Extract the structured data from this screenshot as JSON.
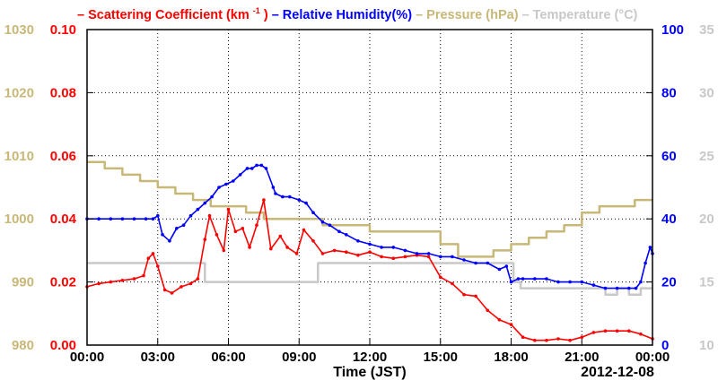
{
  "chart_data": {
    "type": "line",
    "legend": [
      {
        "id": "scat",
        "prefix": "– Scattering Coefficient (km",
        "sup": "-1",
        "suffix": ")",
        "color": "#ff0000"
      },
      {
        "id": "rh",
        "text": " – Relative Humidity(%)",
        "color": "#0000ff"
      },
      {
        "id": "pres",
        "text": " – Pressure (hPa)",
        "color": "#c8b878"
      },
      {
        "id": "temp",
        "text": " – Temperature (°C)",
        "color": "#c8c8c8"
      }
    ],
    "legend_placement": "top",
    "xlabel": "Time (JST)",
    "date_label": "2012-12-08",
    "x_ticks": [
      "00:00",
      "03:00",
      "06:00",
      "09:00",
      "12:00",
      "15:00",
      "18:00",
      "21:00",
      "00:00"
    ],
    "x_range_hours": [
      0,
      24
    ],
    "grid": true,
    "axes": {
      "pressure": {
        "side": "left-outer",
        "range": [
          980,
          1030
        ],
        "ticks": [
          "980",
          "990",
          "1000",
          "1010",
          "1020",
          "1030"
        ],
        "color": "#c8b878"
      },
      "scattering": {
        "side": "left-inner",
        "range": [
          0,
          0.1
        ],
        "ticks": [
          "0.00",
          "0.02",
          "0.04",
          "0.06",
          "0.08",
          "0.10"
        ],
        "color": "#ff0000"
      },
      "humidity": {
        "side": "right-inner",
        "range": [
          0,
          100
        ],
        "ticks": [
          "0",
          "20",
          "40",
          "60",
          "80",
          "100"
        ],
        "color": "#0000ff"
      },
      "temperature": {
        "side": "right-outer",
        "range": [
          10,
          35
        ],
        "ticks": [
          "10",
          "15",
          "20",
          "25",
          "30",
          "35"
        ],
        "color": "#c8c8c8"
      }
    },
    "series": [
      {
        "name": "Scattering Coefficient",
        "axis": "scattering",
        "color": "#ff0000",
        "marker": "circle",
        "x": [
          0,
          0.5,
          1.0,
          1.5,
          2.0,
          2.4,
          2.6,
          2.8,
          3.0,
          3.3,
          3.6,
          4.0,
          4.4,
          4.7,
          5.0,
          5.2,
          5.5,
          5.8,
          6.0,
          6.3,
          6.6,
          6.9,
          7.2,
          7.5,
          7.8,
          8.2,
          8.5,
          8.9,
          9.2,
          9.6,
          10.0,
          10.5,
          11.0,
          11.5,
          12.0,
          12.5,
          13.0,
          13.5,
          14.0,
          14.5,
          15.0,
          15.5,
          16.0,
          16.5,
          17.0,
          17.5,
          18.0,
          18.5,
          19.0,
          19.5,
          20.0,
          20.5,
          21.0,
          21.5,
          22.0,
          22.5,
          23.0,
          23.5,
          24.0
        ],
        "y": [
          0.0185,
          0.0195,
          0.02,
          0.0205,
          0.021,
          0.022,
          0.0275,
          0.029,
          0.025,
          0.0175,
          0.0165,
          0.0185,
          0.0195,
          0.021,
          0.0335,
          0.041,
          0.035,
          0.03,
          0.043,
          0.036,
          0.037,
          0.031,
          0.038,
          0.046,
          0.0305,
          0.0345,
          0.031,
          0.029,
          0.0365,
          0.033,
          0.029,
          0.03,
          0.0295,
          0.0285,
          0.0295,
          0.028,
          0.0275,
          0.028,
          0.0285,
          0.028,
          0.0215,
          0.0195,
          0.016,
          0.0155,
          0.011,
          0.008,
          0.0065,
          0.0025,
          0.0015,
          0.0015,
          0.002,
          0.0015,
          0.0025,
          0.004,
          0.0045,
          0.0045,
          0.0045,
          0.0035,
          0.002
        ]
      },
      {
        "name": "Relative Humidity",
        "axis": "humidity",
        "color": "#0000ff",
        "marker": "circle",
        "x": [
          0,
          0.5,
          1.0,
          1.5,
          2.0,
          2.5,
          2.8,
          3.0,
          3.2,
          3.5,
          3.8,
          4.1,
          4.4,
          4.7,
          5.0,
          5.3,
          5.6,
          5.9,
          6.2,
          6.5,
          6.8,
          7.0,
          7.2,
          7.4,
          7.6,
          7.9,
          8.0,
          8.3,
          8.6,
          9.0,
          9.3,
          9.6,
          10.0,
          10.3,
          10.7,
          11.0,
          11.5,
          12.0,
          12.5,
          13.0,
          13.5,
          14.0,
          14.5,
          15.0,
          15.5,
          16.0,
          16.5,
          17.0,
          17.5,
          17.8,
          18.0,
          18.3,
          18.5,
          19.0,
          19.5,
          20.0,
          20.5,
          21.0,
          21.5,
          22.0,
          22.5,
          23.0,
          23.3,
          23.5,
          23.7,
          23.9,
          24.0
        ],
        "y": [
          40,
          40,
          40,
          40,
          40,
          40,
          40,
          41,
          35,
          33,
          37,
          38,
          41,
          43,
          45,
          47,
          50,
          51,
          52,
          54,
          56,
          56,
          57,
          57,
          56,
          50,
          48,
          47,
          47,
          46,
          45,
          42,
          39,
          38,
          36,
          35,
          33,
          32,
          31,
          31,
          30,
          29,
          29,
          28,
          28,
          27,
          26,
          26,
          24,
          25,
          20,
          21,
          21,
          21,
          21,
          20,
          20,
          20,
          19,
          18,
          18,
          18,
          18,
          20,
          26,
          31,
          29
        ]
      },
      {
        "name": "Pressure",
        "axis": "pressure",
        "color": "#c8b878",
        "step": true,
        "x": [
          0,
          0.75,
          1.5,
          2.25,
          3.0,
          3.75,
          4.5,
          5.25,
          6.0,
          6.75,
          7.5,
          8.25,
          9.0,
          10.0,
          11.0,
          12.0,
          13.0,
          14.0,
          15.0,
          15.75,
          16.5,
          17.25,
          18.0,
          18.75,
          19.5,
          20.25,
          21.0,
          21.75,
          22.5,
          23.25,
          24.0
        ],
        "y": [
          1009,
          1008,
          1007,
          1006,
          1005,
          1004,
          1003,
          1002,
          1002,
          1001,
          1000,
          1000,
          1000,
          999,
          999,
          998,
          998,
          998,
          996,
          994,
          994,
          995,
          996,
          997,
          998,
          999,
          1001,
          1002,
          1002,
          1003,
          1003
        ]
      },
      {
        "name": "Temperature",
        "axis": "temperature",
        "color": "#c8c8c8",
        "step": true,
        "x": [
          0,
          2.5,
          5.0,
          7.5,
          9.8,
          11.0,
          13.0,
          15.0,
          17.5,
          18.1,
          18.4,
          19.5,
          21.0,
          22.0,
          22.5,
          23.0,
          23.5,
          24.0
        ],
        "y": [
          16.5,
          16.5,
          15.0,
          15.0,
          16.5,
          16.5,
          16.5,
          16.5,
          16.5,
          15.0,
          14.5,
          14.5,
          14.5,
          14.0,
          14.5,
          14.0,
          14.5,
          14.5
        ]
      }
    ]
  }
}
